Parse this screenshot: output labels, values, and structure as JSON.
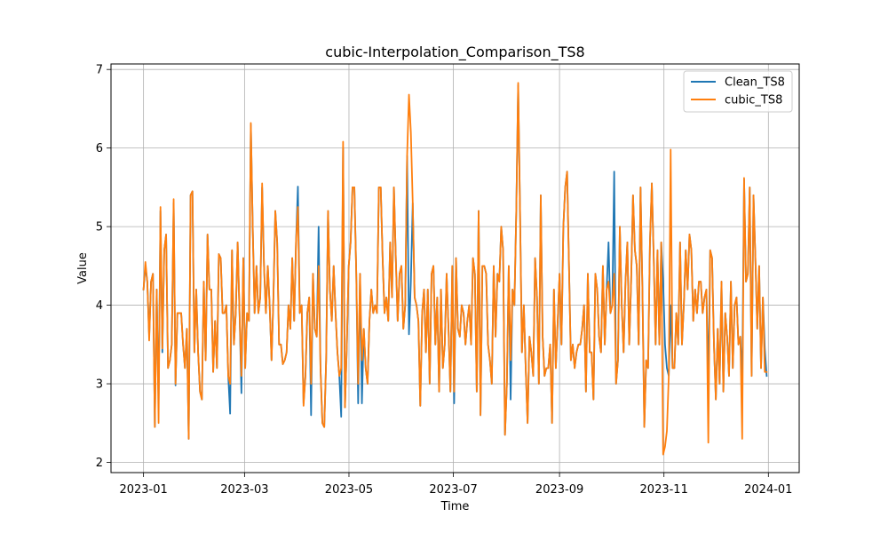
{
  "chart_data": {
    "type": "line",
    "title": "cubic-Interpolation_Comparison_TS8",
    "xlabel": "Time",
    "ylabel": "Value",
    "x_range": [
      "2023-01-01",
      "2023-12-31"
    ],
    "xlim": [
      "2022-12-13",
      "2024-01-19"
    ],
    "ylim": [
      1.87,
      7.07
    ],
    "x_ticks": [
      "2023-01",
      "2023-03",
      "2023-05",
      "2023-07",
      "2023-09",
      "2023-11",
      "2024-01"
    ],
    "y_ticks": [
      2,
      3,
      4,
      5,
      6,
      7
    ],
    "grid": true,
    "legend_position": "top-right",
    "series": [
      {
        "name": "Clean_TS8",
        "color": "#1f77b4",
        "values": [
          4.2,
          4.5,
          4.3,
          3.6,
          4.3,
          4.4,
          2.45,
          4.2,
          2.75,
          5.2,
          3.4,
          4.7,
          4.9,
          3.2,
          3.3,
          3.5,
          5.3,
          2.98,
          3.9,
          3.9,
          3.9,
          3.5,
          3.2,
          3.7,
          2.3,
          5.4,
          5.45,
          3.4,
          4.2,
          3.4,
          2.9,
          2.8,
          4.3,
          3.3,
          4.9,
          4.2,
          4.2,
          3.15,
          3.8,
          3.2,
          4.65,
          4.6,
          3.9,
          3.9,
          4.0,
          3.1,
          2.62,
          4.7,
          3.5,
          3.9,
          4.8,
          3.9,
          2.88,
          4.6,
          3.2,
          3.9,
          3.8,
          6.3,
          5.0,
          3.9,
          4.5,
          3.9,
          4.1,
          5.5,
          4.5,
          3.9,
          4.5,
          4.0,
          3.3,
          4.1,
          5.2,
          4.8,
          3.5,
          3.5,
          3.25,
          3.3,
          3.4,
          4.0,
          3.7,
          4.6,
          3.8,
          4.8,
          5.51,
          3.9,
          4.0,
          2.75,
          3.1,
          3.9,
          4.1,
          2.6,
          4.4,
          3.7,
          3.6,
          5.0,
          3.2,
          2.5,
          2.45,
          3.3,
          5.2,
          4.2,
          3.8,
          4.5,
          3.9,
          3.4,
          3.1,
          2.58,
          6.0,
          2.7,
          3.5,
          4.5,
          4.8,
          5.5,
          5.5,
          4.4,
          2.75,
          4.4,
          2.75,
          3.7,
          3.2,
          3.0,
          3.8,
          4.2,
          3.9,
          4.0,
          3.9,
          5.5,
          5.5,
          4.6,
          3.9,
          4.1,
          3.8,
          4.8,
          4.1,
          5.5,
          4.6,
          3.8,
          4.4,
          4.5,
          3.7,
          4.0,
          5.9,
          3.63,
          4.3,
          5.3,
          4.1,
          4.0,
          3.8,
          2.72,
          3.9,
          4.2,
          3.4,
          4.2,
          3.0,
          4.4,
          4.5,
          3.5,
          4.1,
          2.9,
          4.2,
          3.2,
          3.5,
          4.4,
          3.7,
          2.9,
          4.5,
          2.75,
          4.6,
          3.7,
          3.6,
          4.0,
          3.9,
          3.5,
          3.8,
          4.0,
          3.5,
          4.6,
          4.4,
          2.9,
          5.2,
          2.6,
          4.5,
          4.5,
          4.4,
          3.5,
          3.3,
          3.0,
          4.5,
          3.6,
          4.4,
          4.3,
          5.0,
          4.7,
          2.35,
          3.0,
          4.5,
          2.8,
          4.2,
          4.0,
          5.2,
          6.8,
          5.2,
          3.4,
          4.0,
          3.2,
          2.5,
          3.6,
          3.4,
          3.1,
          4.6,
          4.1,
          3.0,
          5.4,
          3.6,
          3.1,
          3.2,
          3.2,
          3.5,
          2.5,
          4.2,
          3.2,
          3.8,
          4.4,
          3.5,
          5.0,
          5.5,
          5.7,
          4.5,
          3.3,
          3.5,
          3.2,
          3.4,
          3.5,
          3.5,
          3.7,
          4.0,
          2.9,
          4.4,
          3.4,
          3.4,
          2.8,
          4.4,
          4.2,
          3.6,
          3.4,
          4.5,
          3.5,
          4.2,
          4.8,
          3.9,
          4.0,
          5.7,
          3.0,
          3.3,
          5.0,
          4.0,
          3.4,
          4.3,
          4.8,
          3.5,
          4.3,
          5.4,
          4.7,
          4.5,
          3.5,
          5.5,
          4.2,
          2.45,
          3.3,
          3.2,
          4.8,
          5.55,
          4.6,
          3.5,
          4.7,
          3.5,
          4.8,
          4.3,
          3.5,
          3.2,
          3.1,
          4.0,
          3.2,
          3.2,
          3.9,
          3.5,
          4.8,
          3.5,
          4.0,
          4.7,
          4.2,
          4.9,
          4.7,
          3.8,
          4.2,
          3.9,
          4.3,
          4.3,
          3.9,
          4.1,
          4.2,
          3.0,
          4.7,
          4.6,
          3.5,
          2.8,
          3.7,
          3.0,
          4.3,
          2.9,
          3.9,
          3.6,
          3.1,
          4.3,
          3.2,
          4.0,
          4.1,
          3.5,
          3.6,
          3.0,
          5.6,
          4.3,
          4.4,
          5.5,
          3.1,
          5.4,
          4.6,
          3.7,
          4.5,
          3.2,
          4.1,
          3.45,
          3.1
        ]
      },
      {
        "name": "cubic_TS8",
        "color": "#ff7f0e",
        "values": [
          4.2,
          4.55,
          4.3,
          3.55,
          4.3,
          4.4,
          2.45,
          4.2,
          2.5,
          5.25,
          3.45,
          4.7,
          4.9,
          3.2,
          3.3,
          3.5,
          5.35,
          3.0,
          3.9,
          3.9,
          3.9,
          3.5,
          3.2,
          3.7,
          2.3,
          5.4,
          5.45,
          3.4,
          4.2,
          3.4,
          2.9,
          2.8,
          4.3,
          3.3,
          4.9,
          4.2,
          4.2,
          3.15,
          3.8,
          3.2,
          4.65,
          4.6,
          3.9,
          3.9,
          4.0,
          3.1,
          3.0,
          4.7,
          3.5,
          3.9,
          4.8,
          3.9,
          3.1,
          4.6,
          3.2,
          3.9,
          3.8,
          6.32,
          5.0,
          3.9,
          4.5,
          3.9,
          4.1,
          5.55,
          4.5,
          3.9,
          4.5,
          4.0,
          3.3,
          4.1,
          5.2,
          4.8,
          3.5,
          3.5,
          3.25,
          3.3,
          3.4,
          4.0,
          3.7,
          4.6,
          3.8,
          4.8,
          5.25,
          3.9,
          4.0,
          2.72,
          3.1,
          3.9,
          4.1,
          3.0,
          4.4,
          3.7,
          3.6,
          4.5,
          3.2,
          2.5,
          2.45,
          3.3,
          5.2,
          4.2,
          3.8,
          4.5,
          3.9,
          3.4,
          3.1,
          3.2,
          6.08,
          2.7,
          3.5,
          4.5,
          4.8,
          5.5,
          5.5,
          4.4,
          3.0,
          4.4,
          3.3,
          3.7,
          3.2,
          3.0,
          3.8,
          4.2,
          3.9,
          4.0,
          3.9,
          5.5,
          5.5,
          4.6,
          3.9,
          4.1,
          3.8,
          4.8,
          4.1,
          5.5,
          4.6,
          3.8,
          4.4,
          4.5,
          3.7,
          4.0,
          5.9,
          6.68,
          6.2,
          5.3,
          4.1,
          4.0,
          3.8,
          2.72,
          3.9,
          4.2,
          3.4,
          4.2,
          3.0,
          4.4,
          4.5,
          3.5,
          4.1,
          2.9,
          4.2,
          3.2,
          3.5,
          4.4,
          3.7,
          2.9,
          4.5,
          2.9,
          4.6,
          3.7,
          3.6,
          4.0,
          3.9,
          3.5,
          3.8,
          4.0,
          3.5,
          4.6,
          4.4,
          2.9,
          5.2,
          2.6,
          4.5,
          4.5,
          4.4,
          3.5,
          3.3,
          3.0,
          4.5,
          3.6,
          4.4,
          4.3,
          5.0,
          4.7,
          2.35,
          3.0,
          4.5,
          3.3,
          4.2,
          4.0,
          5.2,
          6.83,
          5.2,
          3.4,
          4.0,
          3.2,
          2.5,
          3.6,
          3.4,
          3.1,
          4.6,
          4.1,
          3.0,
          5.4,
          3.6,
          3.1,
          3.2,
          3.2,
          3.5,
          2.5,
          4.2,
          3.2,
          3.8,
          4.4,
          3.5,
          5.0,
          5.5,
          5.7,
          4.5,
          3.3,
          3.5,
          3.2,
          3.4,
          3.5,
          3.5,
          3.7,
          4.0,
          2.9,
          4.4,
          3.4,
          3.4,
          2.8,
          4.4,
          4.2,
          3.6,
          3.4,
          4.5,
          3.5,
          4.2,
          4.3,
          3.9,
          4.0,
          4.4,
          3.0,
          3.3,
          5.0,
          4.0,
          3.4,
          4.3,
          4.8,
          3.5,
          4.3,
          5.4,
          4.7,
          4.5,
          3.5,
          5.5,
          4.2,
          2.45,
          3.3,
          3.2,
          4.8,
          5.55,
          4.6,
          3.5,
          4.7,
          3.5,
          4.8,
          2.1,
          2.2,
          2.4,
          3.1,
          5.98,
          3.2,
          3.2,
          3.9,
          3.5,
          4.8,
          3.5,
          4.0,
          4.7,
          4.2,
          4.9,
          4.7,
          3.8,
          4.2,
          3.9,
          4.3,
          4.3,
          3.9,
          4.1,
          4.2,
          2.25,
          4.7,
          4.6,
          3.5,
          2.8,
          3.7,
          3.0,
          4.3,
          2.9,
          3.9,
          3.6,
          3.1,
          4.3,
          3.2,
          4.0,
          4.1,
          3.5,
          3.6,
          2.3,
          5.62,
          4.3,
          4.4,
          5.5,
          3.1,
          5.4,
          4.6,
          3.7,
          4.5,
          3.2,
          4.1,
          3.15,
          3.15
        ]
      }
    ]
  }
}
